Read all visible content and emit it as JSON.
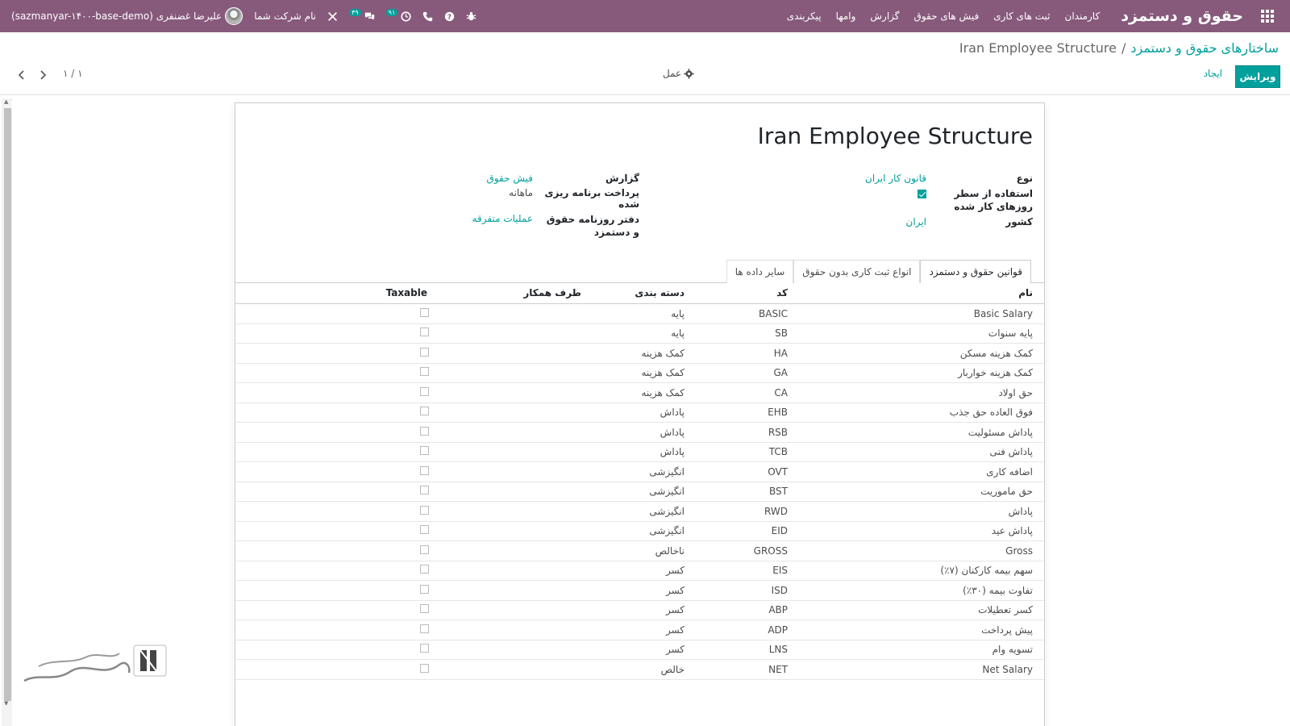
{
  "navbar": {
    "app_title": "حقوق و دستمزد",
    "menu": [
      "کارمندان",
      "ثبت های کاری",
      "فیش های حقوق",
      "گزارش",
      "وامها",
      "پیکربندی"
    ],
    "messages_badge": "۴۹",
    "activities_badge": "۹۱",
    "company": "نام شرکت شما",
    "user": "علیرضا غضنفری (sazmanyar-۱۴۰۰-base-demo)"
  },
  "breadcrumb": {
    "parent": "ساختارهای حقوق و دستمزد",
    "separator": "/",
    "current": "Iran Employee Structure"
  },
  "buttons": {
    "edit": "ویرایش",
    "create": "ایجاد",
    "action": "عمل"
  },
  "pager": {
    "value": "۱ / ۱"
  },
  "form": {
    "title": "Iran Employee Structure",
    "left_group": [
      {
        "label": "نوع",
        "value": "قانون کار ایران",
        "type": "link"
      },
      {
        "label": "استفاده از سطر روزهای کار شده",
        "value": "checked",
        "type": "checkbox"
      },
      {
        "label": "کشور",
        "value": "ایران",
        "type": "link"
      }
    ],
    "right_group": [
      {
        "label": "گزارش",
        "value": "فیش حقوق",
        "type": "link"
      },
      {
        "label": "پرداخت برنامه ریزی شده",
        "value": "ماهانه",
        "type": "plain"
      },
      {
        "label": "دفتر روزنامه حقوق و دستمزد",
        "value": "عملیات متفرقه",
        "type": "link"
      }
    ]
  },
  "tabs": [
    "قوانین حقوق و دستمزد",
    "انواع ثبت کاری بدون حقوق",
    "سایر داده ها"
  ],
  "table": {
    "headers": [
      "نام",
      "کد",
      "دسته بندی",
      "طرف همکار",
      "Taxable"
    ],
    "rows": [
      {
        "name": "Basic Salary",
        "code": "BASIC",
        "category": "پایه",
        "partner": ""
      },
      {
        "name": "پایه سنوات",
        "code": "SB",
        "category": "پایه",
        "partner": ""
      },
      {
        "name": "کمک هزینه مسکن",
        "code": "HA",
        "category": "کمک هزینه",
        "partner": ""
      },
      {
        "name": "کمک هزینه خواربار",
        "code": "GA",
        "category": "کمک هزینه",
        "partner": ""
      },
      {
        "name": "حق اولاد",
        "code": "CA",
        "category": "کمک هزینه",
        "partner": ""
      },
      {
        "name": "فوق العاده حق جذب",
        "code": "EHB",
        "category": "پاداش",
        "partner": ""
      },
      {
        "name": "پاداش مسئولیت",
        "code": "RSB",
        "category": "پاداش",
        "partner": ""
      },
      {
        "name": "پاداش فنی",
        "code": "TCB",
        "category": "پاداش",
        "partner": ""
      },
      {
        "name": "اضافه کاری",
        "code": "OVT",
        "category": "انگیزشی",
        "partner": ""
      },
      {
        "name": "حق ماموریت",
        "code": "BST",
        "category": "انگیزشی",
        "partner": ""
      },
      {
        "name": "پاداش",
        "code": "RWD",
        "category": "انگیزشی",
        "partner": ""
      },
      {
        "name": "پاداش عید",
        "code": "EID",
        "category": "انگیزشی",
        "partner": ""
      },
      {
        "name": "Gross",
        "code": "GROSS",
        "category": "ناخالص",
        "partner": ""
      },
      {
        "name": "سهم بیمه کارکنان (۷٪)",
        "code": "EIS",
        "category": "کسر",
        "partner": ""
      },
      {
        "name": "تفاوت بیمه (۳۰٪)",
        "code": "ISD",
        "category": "کسر",
        "partner": ""
      },
      {
        "name": "کسر تعطیلات",
        "code": "ABP",
        "category": "کسر",
        "partner": ""
      },
      {
        "name": "پیش پرداخت",
        "code": "ADP",
        "category": "کسر",
        "partner": ""
      },
      {
        "name": "تسویه وام",
        "code": "LNS",
        "category": "کسر",
        "partner": ""
      },
      {
        "name": "Net Salary",
        "code": "NET",
        "category": "خالص",
        "partner": ""
      }
    ]
  },
  "icons": [
    "apps-icon",
    "bug-icon",
    "help-icon",
    "phone-icon",
    "activity-clock-icon",
    "chat-icon",
    "tools-icon",
    "gear-icon",
    "chevron-left-icon",
    "chevron-right-icon"
  ],
  "colors": {
    "navbar": "#875a7b",
    "accent": "#00a09d"
  }
}
